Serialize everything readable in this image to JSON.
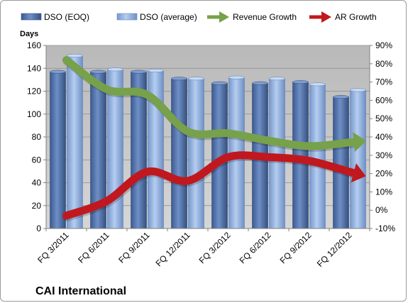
{
  "chart_data": {
    "type": "bar",
    "caption": "CAI International",
    "ylabel": "Days",
    "categories": [
      "FQ 3/2011",
      "FQ 6/2011",
      "FQ 9/2011",
      "FQ 12/2011",
      "FQ 3/2012",
      "FQ 6/2012",
      "FQ 9/2012",
      "FQ 12/2012"
    ],
    "ylim": [
      0,
      160
    ],
    "yticks": [
      0,
      20,
      40,
      60,
      80,
      100,
      120,
      140,
      160
    ],
    "y2lim": [
      -10,
      90
    ],
    "y2ticks": [
      "-10%",
      "0%",
      "10%",
      "20%",
      "30%",
      "40%",
      "50%",
      "60%",
      "70%",
      "80%",
      "90%"
    ],
    "y2values": [
      -10,
      0,
      10,
      20,
      30,
      40,
      50,
      60,
      70,
      80,
      90
    ],
    "legend_position": "top",
    "grid": true,
    "series": [
      {
        "name": "DSO (EOQ)",
        "kind": "bar",
        "axis": "left",
        "color": "#4f6fa8",
        "values": [
          137,
          137,
          137,
          131,
          127,
          127,
          128,
          115
        ]
      },
      {
        "name": "DSO (average)",
        "kind": "bar",
        "axis": "left",
        "color": "#8aaee0",
        "values": [
          151,
          139,
          138,
          131,
          132,
          131,
          126,
          121
        ]
      },
      {
        "name": "Revenue Growth",
        "kind": "arrow-line",
        "axis": "right",
        "color": "#77a14a",
        "values": [
          82,
          66,
          63,
          43,
          42,
          38,
          35,
          37
        ]
      },
      {
        "name": "AR Growth",
        "kind": "arrow-line",
        "axis": "right",
        "color": "#c0181e",
        "values": [
          -3,
          5,
          21,
          16,
          29,
          29,
          27,
          21
        ]
      }
    ]
  }
}
